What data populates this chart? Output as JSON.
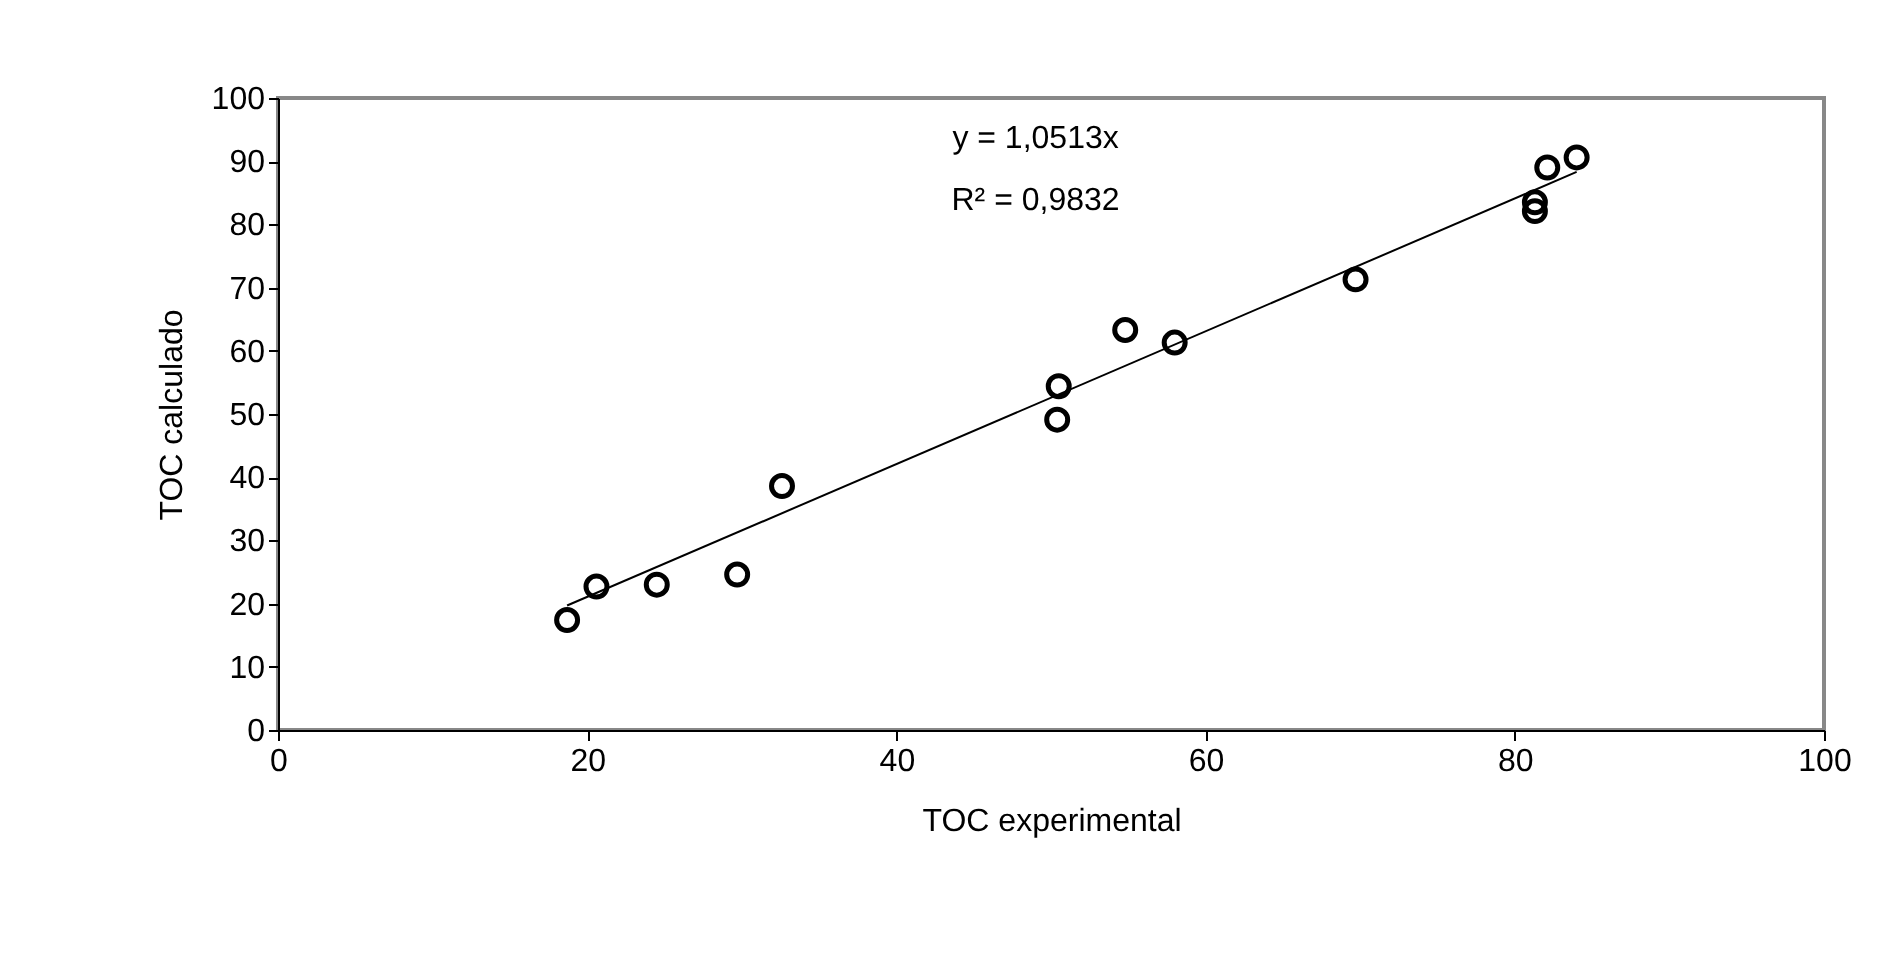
{
  "chart_data": {
    "type": "scatter",
    "xlabel": "TOC experimental",
    "ylabel": "TOC calculado",
    "xlim": [
      0,
      100
    ],
    "xticks": [
      0,
      20,
      40,
      60,
      80,
      100
    ],
    "ylim": [
      0,
      100
    ],
    "yticks": [
      0,
      10,
      20,
      30,
      40,
      50,
      60,
      70,
      80,
      90,
      100
    ],
    "grid": false,
    "marker": "circle",
    "annotations": [
      "y = 1,0513x",
      "R² = 0,9832"
    ],
    "series": [
      {
        "type": "scatter",
        "color": "#000000",
        "x": [
          18.7,
          20.6,
          24.5,
          29.7,
          32.6,
          50.4,
          50.5,
          54.8,
          58.0,
          69.7,
          81.3,
          81.3,
          82.1,
          84.0
        ],
        "values": [
          17.4,
          22.7,
          23.0,
          24.6,
          38.6,
          49.1,
          54.4,
          63.3,
          61.3,
          71.3,
          83.5,
          82.1,
          89.0,
          90.6
        ]
      },
      {
        "type": "line",
        "color": "#000000",
        "line_style": "solid",
        "marker": "none",
        "x": [
          18.7,
          84.0
        ],
        "values": [
          19.7,
          88.3
        ]
      }
    ]
  }
}
